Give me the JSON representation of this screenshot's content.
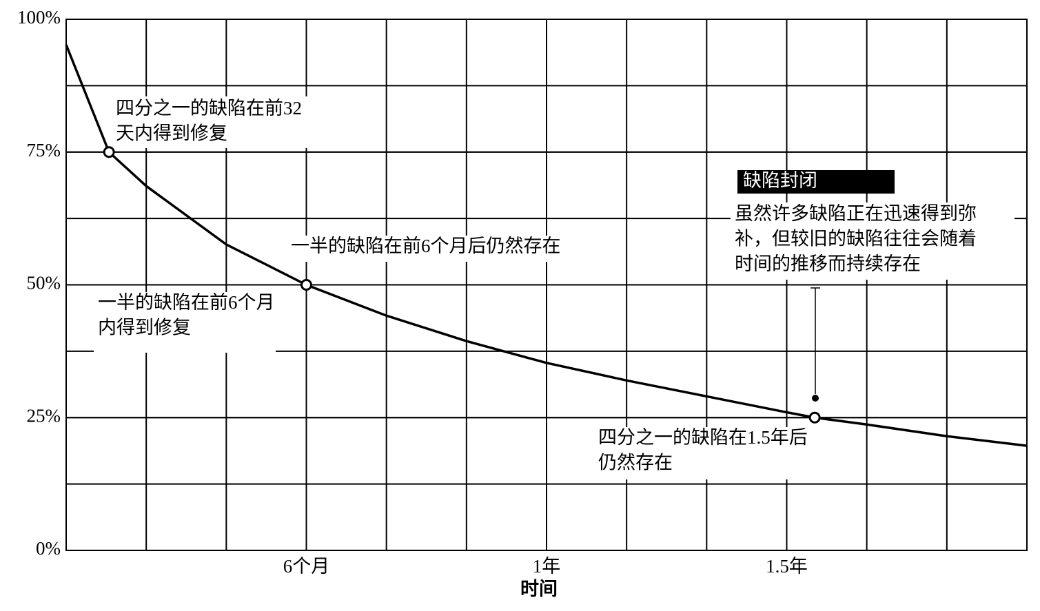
{
  "chart_data": {
    "type": "line",
    "x_label": "时间",
    "x": [
      0,
      1.07,
      2,
      4,
      6,
      8,
      10,
      12,
      14,
      16,
      18,
      18.7,
      20,
      22,
      24
    ],
    "values": [
      95.2,
      75,
      68.6,
      57.6,
      50,
      44.2,
      39.4,
      35.3,
      32,
      29,
      26,
      25,
      23.7,
      21.5,
      19.7
    ],
    "color": "#000000",
    "markers": {
      "x": [
        1.07,
        6,
        18.7
      ],
      "values": [
        75,
        50,
        25
      ]
    },
    "xlim": [
      0,
      24
    ],
    "ylim": [
      0,
      100
    ],
    "xticks": [
      {
        "value": 6,
        "label": "6个月"
      },
      {
        "value": 12,
        "label": "1年"
      },
      {
        "value": 18,
        "label": "1.5年"
      }
    ],
    "yticks": [
      {
        "value": 0,
        "label": "0%"
      },
      {
        "value": 25,
        "label": "25%"
      },
      {
        "value": 50,
        "label": "50%"
      },
      {
        "value": 75,
        "label": "75%"
      },
      {
        "value": 100,
        "label": "100%"
      }
    ],
    "grid": true,
    "annotations": [
      {
        "lines": [
          "四分之一的缺陷在前32",
          "天内得到修复"
        ]
      },
      {
        "lines": [
          "一半的缺陷在前6个月后仍然存在"
        ]
      },
      {
        "lines": [
          "一半的缺陷在前6个月",
          "内得到修复"
        ]
      },
      {
        "lines": [
          "四分之一的缺陷在1.5年后",
          "仍然存在"
        ]
      },
      {
        "title": "缺陷封闭",
        "lines": [
          "虽然许多缺陷正在迅速得到弥",
          "补，但较旧的缺陷往往会随着",
          "时间的推移而持续存在"
        ]
      }
    ]
  }
}
